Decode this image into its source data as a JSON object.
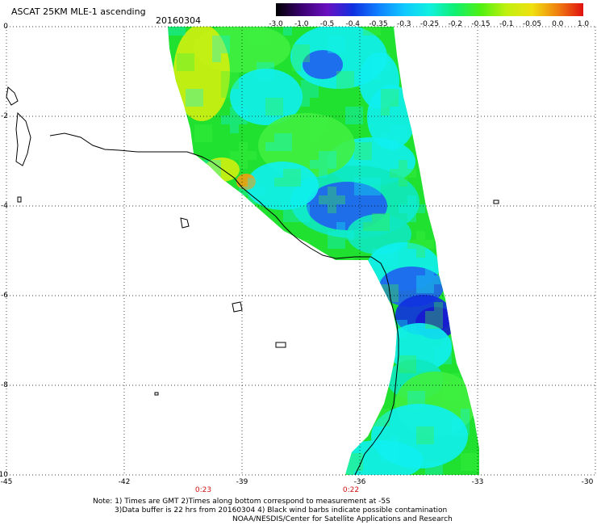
{
  "header": {
    "title": "ASCAT 25KM MLE-1 ascending",
    "date": "20160304"
  },
  "colorbar": {
    "labels": [
      "-3.0",
      "-1.0",
      "-0.5",
      "-0.4",
      "-0.35",
      "-0.3",
      "-0.25",
      "-0.2",
      "-0.15",
      "-0.1",
      "-0.05",
      "0.0",
      "1.0"
    ],
    "colors": [
      "#000000",
      "#3a0070",
      "#6a10c0",
      "#1030e0",
      "#1080ff",
      "#10c8ff",
      "#10f0e0",
      "#10f070",
      "#50f010",
      "#c0f010",
      "#f0e010",
      "#f08010",
      "#e01010"
    ]
  },
  "axes": {
    "x_ticks": [
      "-45",
      "-42",
      "-39",
      "-36",
      "-33",
      "-30"
    ],
    "y_ticks": [
      "0",
      "-2",
      "-4",
      "-6",
      "-8",
      "-10"
    ],
    "x_range": [
      -45,
      -30
    ],
    "y_range": [
      -10,
      0
    ]
  },
  "times": [
    "0:23",
    "0:22"
  ],
  "notes": {
    "line1": "Note: 1) Times are GMT 2)Times along bottom correspond to measurement at -5S",
    "line2": "3)Data buffer is 22 hrs from 20160304 4) Black wind barbs indicate possible contamination",
    "line3": "NOAA/NESDIS/Center for Satellite Applications and Research"
  },
  "palette": {
    "green": "#20e030",
    "lightgreen": "#40f040",
    "cyan": "#10f0f0",
    "teal": "#10e8c0",
    "blue": "#2060f0",
    "deepblue": "#1030e0",
    "navy": "#1818d0",
    "yellow": "#d0f010",
    "orange": "#f0a010"
  }
}
